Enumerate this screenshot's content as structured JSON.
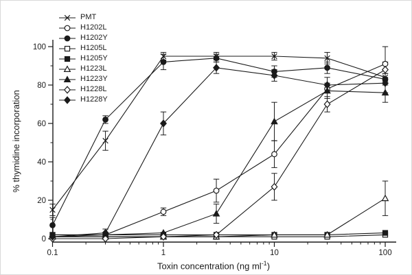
{
  "figure": {
    "background": "#ffffff",
    "ink_color": "#1a1a1a"
  },
  "chart_data": {
    "type": "line",
    "x_scale": "log",
    "x": [
      0.1,
      0.3,
      1,
      3,
      10,
      30,
      100
    ],
    "x_ticks": [
      0.1,
      1,
      10,
      100
    ],
    "x_tick_labels": [
      "0.1",
      "1",
      "10",
      "100"
    ],
    "y_ticks": [
      0,
      20,
      40,
      60,
      80,
      100
    ],
    "y_minor_step": 10,
    "ylim": [
      0,
      100
    ],
    "grid": false,
    "legend_position": "top-left-inside",
    "xlabel": {
      "main": "Toxin concentration (ng ml",
      "sup": "-1",
      "end": ")"
    },
    "ylabel": "% thymidine incorporation",
    "series": [
      {
        "name": "PMT",
        "marker": "x",
        "fill": "none",
        "values": [
          15,
          51,
          95,
          95,
          95,
          94,
          84
        ],
        "errors": [
          3,
          5,
          2,
          2,
          2,
          3,
          4
        ]
      },
      {
        "name": "H1202L",
        "marker": "circle",
        "fill": "open",
        "values": [
          1,
          2,
          14,
          25,
          44,
          78,
          91
        ],
        "errors": [
          0,
          0,
          2,
          6,
          7,
          0,
          9
        ]
      },
      {
        "name": "H1202Y",
        "marker": "circle",
        "fill": "filled",
        "values": [
          7,
          62,
          92,
          94,
          87,
          89,
          83
        ],
        "errors": [
          4,
          2,
          4,
          2,
          3,
          3,
          3
        ]
      },
      {
        "name": "H1205L",
        "marker": "square",
        "fill": "open",
        "values": [
          1,
          1,
          1,
          1,
          1,
          1,
          2
        ],
        "errors": [
          0,
          0,
          0,
          0,
          0,
          0,
          0
        ]
      },
      {
        "name": "H1205Y",
        "marker": "square",
        "fill": "filled",
        "values": [
          2,
          2,
          2,
          2,
          2,
          2,
          3
        ],
        "errors": [
          0,
          0,
          0,
          0,
          0,
          0,
          0
        ]
      },
      {
        "name": "H1223L",
        "marker": "triangle",
        "fill": "open",
        "values": [
          1,
          1,
          1,
          1,
          2,
          2,
          21
        ],
        "errors": [
          0,
          0,
          0,
          0,
          0,
          0,
          9
        ]
      },
      {
        "name": "H1223Y",
        "marker": "triangle",
        "fill": "filled",
        "values": [
          2,
          2,
          3,
          13,
          61,
          77,
          76
        ],
        "errors": [
          0,
          0,
          0,
          5,
          10,
          4,
          5
        ]
      },
      {
        "name": "H1228L",
        "marker": "diamond",
        "fill": "open",
        "values": [
          0,
          0,
          1,
          2,
          27,
          70,
          88
        ],
        "errors": [
          0,
          0,
          0,
          0,
          7,
          4,
          4
        ]
      },
      {
        "name": "H1228Y",
        "marker": "diamond",
        "fill": "filled",
        "values": [
          1,
          3,
          60,
          89,
          85,
          80,
          81
        ],
        "errors": [
          0,
          2,
          6,
          3,
          3,
          4,
          5
        ]
      }
    ]
  }
}
